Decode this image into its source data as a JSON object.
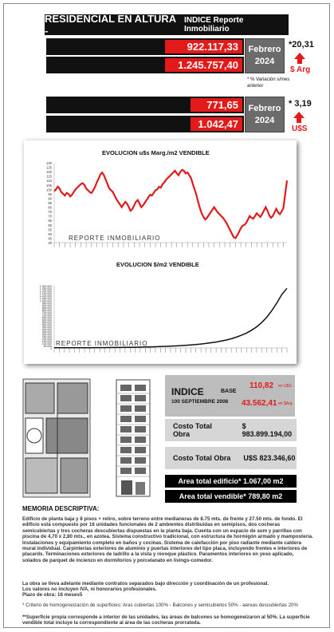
{
  "header": {
    "title": "RESIDENCIAL EN ALTURA -",
    "subtitle": "INDICE Reporte Inmobiliario"
  },
  "pesos": {
    "value1": "922.117,33",
    "value2": "1.245.757,40",
    "period_month": "Febrero",
    "period_year": "2024",
    "pct": "*20,31",
    "unit": "$ Arg",
    "note": "* % Variación s/mes anterior"
  },
  "dollars": {
    "value1": "771,65",
    "value2": "1.042,47",
    "period_month": "Febrero",
    "period_year": "2024",
    "pct": "* 3,19",
    "unit": "U$S"
  },
  "chart_data": [
    {
      "type": "line",
      "title": "EVOLUCION u$s Marg./m2 VENDIBLE",
      "ylim": [
        40,
        130
      ],
      "yticks": [
        130,
        125,
        120,
        115,
        110,
        105,
        100,
        95,
        90,
        85,
        80,
        75,
        70,
        65,
        60,
        55,
        50,
        45,
        40
      ],
      "color": "#e21a1a",
      "brand": "REPORTE INMOBILIARIO",
      "values": [
        98,
        100,
        103,
        101,
        97,
        95,
        93,
        96,
        95,
        92,
        94,
        97,
        100,
        102,
        104,
        106,
        107,
        105,
        101,
        99,
        97,
        96,
        99,
        103,
        108,
        112,
        117,
        119,
        116,
        111,
        106,
        101,
        99,
        97,
        93,
        89,
        86,
        83,
        80,
        83,
        86,
        84,
        80,
        76,
        78,
        82,
        86,
        88,
        84,
        80,
        82,
        85,
        88,
        91,
        94,
        93,
        96,
        99,
        100,
        103,
        102,
        106,
        108,
        111,
        113,
        115,
        117,
        119,
        121,
        118,
        116,
        120,
        122,
        121,
        118,
        119,
        116,
        113,
        106,
        100,
        94,
        86,
        79,
        73,
        69,
        66,
        68,
        71,
        74,
        77,
        80,
        77,
        74,
        72,
        70,
        68,
        65,
        62,
        58,
        54,
        50,
        46,
        45,
        48,
        52,
        56,
        59,
        60,
        62,
        66,
        70,
        68,
        67,
        70,
        73,
        71,
        69,
        72,
        76,
        80,
        76,
        71,
        68,
        70,
        74,
        78,
        74,
        72,
        75,
        79,
        95,
        110
      ]
    },
    {
      "type": "line",
      "title": "EVOLUCION $/m2 VENDIBLE",
      "ylim": [
        0,
        1300000
      ],
      "yticks": [
        "1.300.000",
        "1.250.000",
        "1.200.000",
        "1.150.000",
        "1.100.000",
        "1.050.000",
        "1.000.000",
        "950.000",
        "900.000",
        "850.000",
        "800.000",
        "750.000",
        "700.000",
        "650.000",
        "600.000",
        "550.000",
        "500.000",
        "450.000",
        "400.000",
        "350.000",
        "300.000",
        "250.000",
        "200.000",
        "150.000",
        "100.000",
        "50.000",
        "0"
      ],
      "color": "#111111",
      "brand": "REPORTE INMOBILIARIO",
      "values": [
        3000,
        3200,
        3400,
        3700,
        4000,
        4400,
        4800,
        5300,
        5900,
        6600,
        7400,
        8300,
        9300,
        10500,
        11800,
        13300,
        15000,
        17000,
        19300,
        22000,
        25000,
        28500,
        32500,
        37000,
        42000,
        48000,
        55000,
        63000,
        72000,
        82000,
        94000,
        108000,
        124000,
        143000,
        165000,
        192000,
        225000,
        265000,
        310000,
        370000,
        440000,
        530000,
        640000,
        780000,
        940000,
        1120000,
        1245757
      ]
    }
  ],
  "index": {
    "label": "INDICE",
    "base_label": "BASE",
    "base_date": "100 SEPTIEMBRE 2008",
    "usd_value": "110,82",
    "usd_unit": "en U$S",
    "ars_value": "43.562,41",
    "ars_unit": "en $Arg"
  },
  "costs": {
    "label1": "Costo Total Obra",
    "value1": "$ 983.899.194,00",
    "label2": "Costo Total Obra",
    "value2": "U$S 823.346,60"
  },
  "areas": {
    "total": "Area total edificio* 1.067,00 m2",
    "sellable": "Area total vendible* 789,80 m2"
  },
  "memoria": {
    "heading": "MEMORIA DESCRIPTIVA:",
    "body": "Edificio de planta baja y 8 pisos + retiro, sobre terreno entre medianeras de 8.75 mts. de frente y 27.50 mts. de fondo. El edificio está compuesto por 16 unidades funcionales de 2 ambientes distribuidas en semipisos, dos cocheras semicubiertas y tres cocheras descubiertas dispuestas en la planta baja. Cuenta con un espacio de sum y parrillas con piscina de 4,70 x 2,80 mts., en azotea. Sistema constructivo tradicional, con estructura de hormigón armado y mampostería. Instalaciones y equipamiento completo en baños y cocinas. Sistema de calefacción por piso radiante mediante caldera mural individual. Carpinterías exteriores de aluminio y puertas interiores del tipo placa, incluyendo frentes e interiores de placards. Terminaciones exteriores de ladrillo a la vista y revoque plástico. Paramentos interiores en yeso aplicado, solados de parquet de incienzo en dormitorios y porcelanato en livings-comedor.",
    "line2": "La obra se lleva adelante mediante contratos separados bajo dirección y coordinación de un profesional.",
    "line3": "Los valores no incluyen IVA, ni honorarios profesionales.",
    "line4": "Plazo de obra: 16 meses5",
    "footnote1": "* Criterio de homogeneización de superficies: Aras cubiertas 100% - Balcones y semicubietos 50% - aereas descubiertas 20%",
    "footnote2": "**Superficie propia corresponde a interior de las unidades, las áreas de balcones se homogeneizaron al 50%. La superficie vendible total incluye la correspondiente al área de las cocheras prorrateda."
  }
}
